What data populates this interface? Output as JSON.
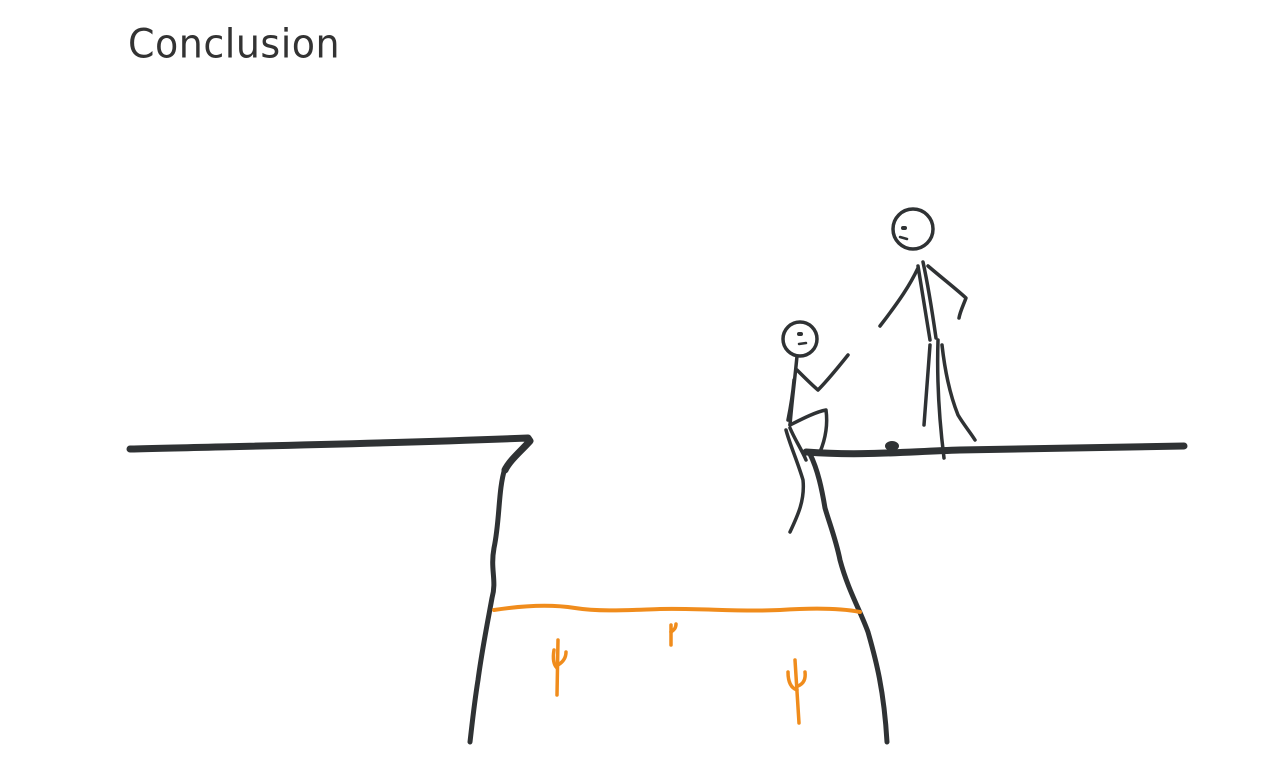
{
  "slide": {
    "title": "Conclusion"
  },
  "colors": {
    "ink": "#2f3234",
    "desert": "#f08c1c",
    "background": "#ffffff"
  }
}
